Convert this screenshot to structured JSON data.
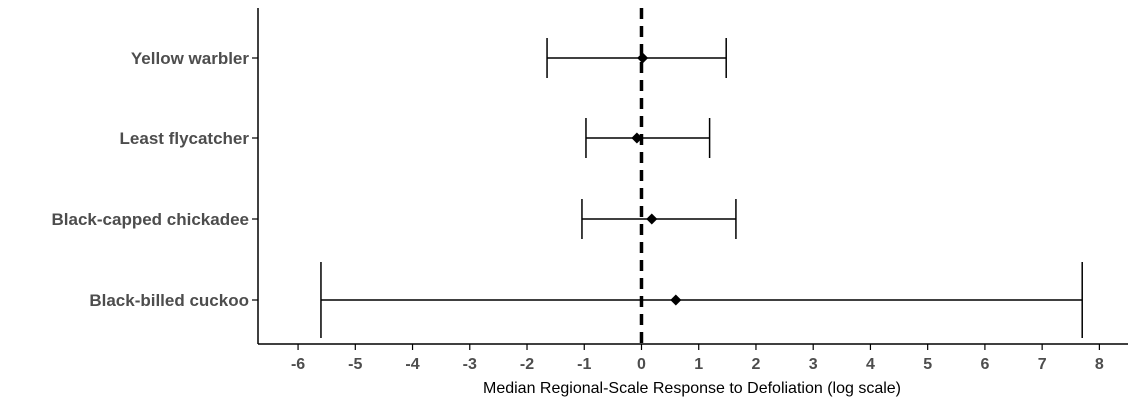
{
  "chart_data": {
    "type": "forest",
    "categories": [
      "Yellow warbler",
      "Least flycatcher",
      "Black-capped chickadee",
      "Black-billed cuckoo"
    ],
    "series": [
      {
        "points": [
          {
            "category": "Yellow warbler",
            "median": 0.02,
            "lower": -1.65,
            "upper": 1.48
          },
          {
            "category": "Least flycatcher",
            "median": -0.08,
            "lower": -0.97,
            "upper": 1.19
          },
          {
            "category": "Black-capped chickadee",
            "median": 0.18,
            "lower": -1.04,
            "upper": 1.65
          },
          {
            "category": "Black-billed cuckoo",
            "median": 0.6,
            "lower": -5.6,
            "upper": 7.7
          }
        ]
      }
    ],
    "reference_line": {
      "x": 0,
      "style": "dashed"
    },
    "xlabel": "Median Regional-Scale Response to Defoliation (log scale)",
    "ylabel": "",
    "title": "",
    "xlim": [
      -6.7,
      8.5
    ],
    "xticks": [
      "-6",
      "-5",
      "-4",
      "-3",
      "-2",
      "-1",
      "0",
      "1",
      "2",
      "3",
      "4",
      "5",
      "6",
      "7",
      "8"
    ],
    "grid": false,
    "colors": {
      "marks": "#000000",
      "labels": "#4d4d4d"
    }
  }
}
